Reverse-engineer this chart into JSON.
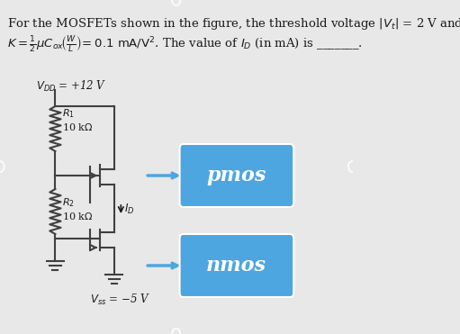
{
  "bg_color": "#e8e8e8",
  "title_line1": "For the MOSFETs shown in the figure, the threshold voltage |V",
  "title_line2": "t",
  "title_line3": "| = 2 V and",
  "formula": "K = \\frac{1}{2}\\mu C_{ox}\\left(\\frac{W}{L}\\right) = 0.1 mA/V\\u00b2. The value of I_{D} (in mA) is _______.",
  "vdd_label": "$V_{DD}$ = +12 V",
  "vss_label": "$V_{ss}$ = −5 V",
  "r1_label": "$R_1$\n10 kΩ",
  "r2_label": "$R_2$\n10 kΩ",
  "id_label": "$I_D$",
  "pmos_label": "pmos",
  "nmos_label": "nmos",
  "box_color": "#4da6e0",
  "box_color2": "#4a9fd4",
  "arrow_color": "#4da6e0",
  "circuit_color": "#404040",
  "text_color": "#1a1a1a"
}
